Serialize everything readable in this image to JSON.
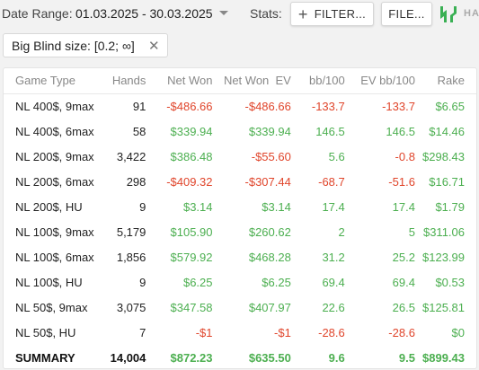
{
  "toolbar": {
    "date_label": "Date Range:",
    "date_value": "01.03.2025 - 30.03.2025",
    "stats_label": "Stats:",
    "filter_label": "FILTER...",
    "file_label": "FILE...",
    "logo_text": "HA"
  },
  "filter_chip": {
    "label": "Big Blind size: [0.2; ∞]"
  },
  "table": {
    "headers": {
      "game_type": "Game Type",
      "hands": "Hands",
      "net_won": "Net Won",
      "net_won_ev": "Net Won  EV",
      "bb100": "bb/100",
      "ev_bb100": "EV bb/100",
      "rake": "Rake"
    },
    "rows": [
      {
        "game": "NL 400$, 9max",
        "hands": "91",
        "net": "-$486.66",
        "net_ev": "-$486.66",
        "bb": "-133.7",
        "ev_bb": "-133.7",
        "rake": "$6.65"
      },
      {
        "game": "NL 400$, 6max",
        "hands": "58",
        "net": "$339.94",
        "net_ev": "$339.94",
        "bb": "146.5",
        "ev_bb": "146.5",
        "rake": "$14.46"
      },
      {
        "game": "NL 200$, 9max",
        "hands": "3,422",
        "net": "$386.48",
        "net_ev": "-$55.60",
        "bb": "5.6",
        "ev_bb": "-0.8",
        "rake": "$298.43"
      },
      {
        "game": "NL 200$, 6max",
        "hands": "298",
        "net": "-$409.32",
        "net_ev": "-$307.44",
        "bb": "-68.7",
        "ev_bb": "-51.6",
        "rake": "$16.71"
      },
      {
        "game": "NL 200$, HU",
        "hands": "9",
        "net": "$3.14",
        "net_ev": "$3.14",
        "bb": "17.4",
        "ev_bb": "17.4",
        "rake": "$1.79"
      },
      {
        "game": "NL 100$, 9max",
        "hands": "5,179",
        "net": "$105.90",
        "net_ev": "$260.62",
        "bb": "2",
        "ev_bb": "5",
        "rake": "$311.06"
      },
      {
        "game": "NL 100$, 6max",
        "hands": "1,856",
        "net": "$579.92",
        "net_ev": "$468.28",
        "bb": "31.2",
        "ev_bb": "25.2",
        "rake": "$123.99"
      },
      {
        "game": "NL 100$, HU",
        "hands": "9",
        "net": "$6.25",
        "net_ev": "$6.25",
        "bb": "69.4",
        "ev_bb": "69.4",
        "rake": "$0.53"
      },
      {
        "game": "NL 50$, 9max",
        "hands": "3,075",
        "net": "$347.58",
        "net_ev": "$407.97",
        "bb": "22.6",
        "ev_bb": "26.5",
        "rake": "$125.81"
      },
      {
        "game": "NL 50$, HU",
        "hands": "7",
        "net": "-$1",
        "net_ev": "-$1",
        "bb": "-28.6",
        "ev_bb": "-28.6",
        "rake": "$0"
      }
    ],
    "summary": {
      "game": "SUMMARY",
      "hands": "14,004",
      "net": "$872.23",
      "net_ev": "$635.50",
      "bb": "9.6",
      "ev_bb": "9.5",
      "rake": "$899.43"
    }
  },
  "colors": {
    "positive": "#4caf50",
    "negative": "#e0452b",
    "logo": "#3ab054"
  }
}
